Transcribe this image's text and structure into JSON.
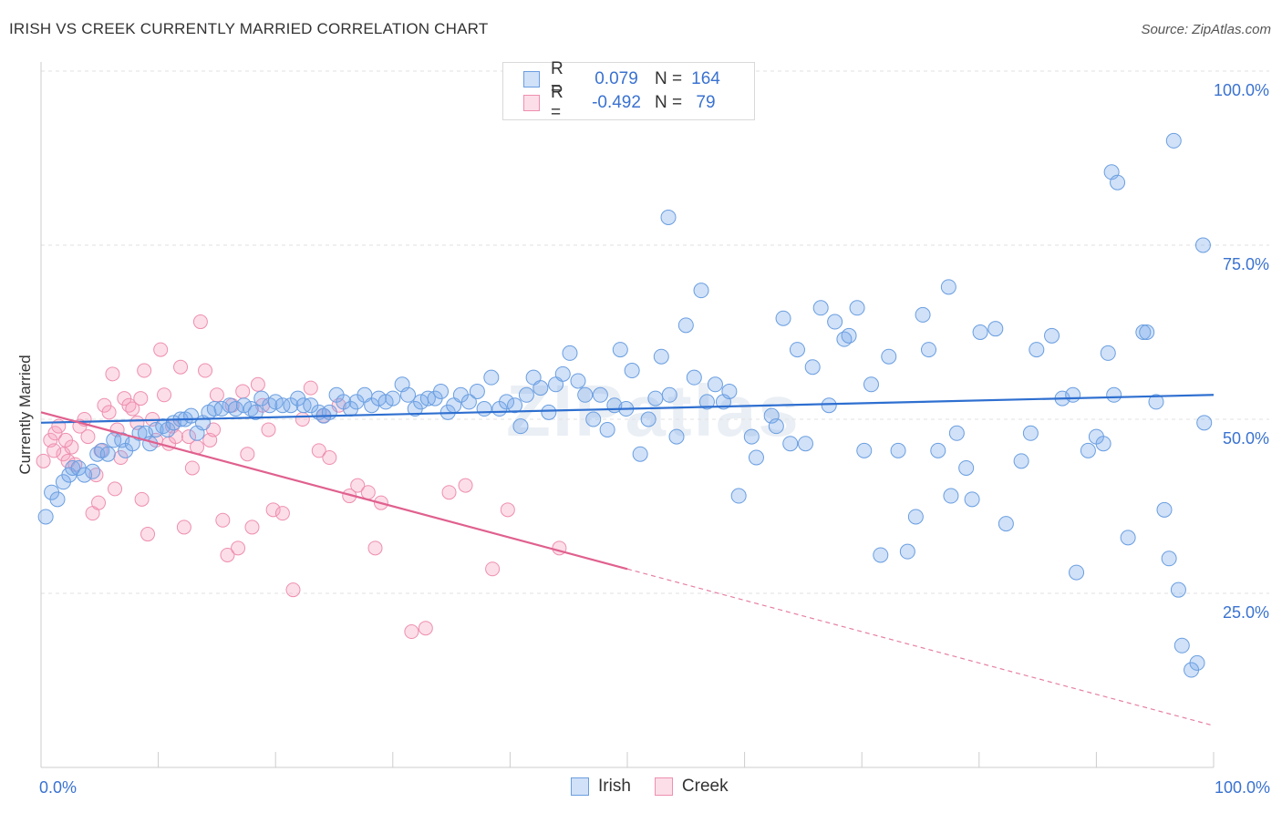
{
  "header": {
    "title": "IRISH VS CREEK CURRENTLY MARRIED CORRELATION CHART",
    "source": "Source: ZipAtlas.com"
  },
  "watermark": "ZIPatlas",
  "legend": {
    "rows": [
      {
        "r_label": "R =",
        "r_value": "0.079",
        "n_label": "N =",
        "n_value": "164"
      },
      {
        "r_label": "R =",
        "r_value": "-0.492",
        "n_label": "N =",
        "n_value": "79"
      }
    ]
  },
  "colors": {
    "irish_fill": "rgba(120,170,235,0.35)",
    "irish_stroke": "#6a9ee0",
    "irish_line": "#2e6fd0",
    "creek_fill": "rgba(245,160,190,0.35)",
    "creek_stroke": "#ee8fb0",
    "creek_line": "#e0608e",
    "tick_label": "#3a72d0",
    "grid": "#e2e2e2"
  },
  "chart_data": {
    "type": "scatter",
    "title": "IRISH VS CREEK CURRENTLY MARRIED CORRELATION CHART",
    "xlabel": "",
    "ylabel": "Currently Married",
    "xlim": [
      0,
      100
    ],
    "ylim": [
      0,
      100
    ],
    "x_tick_labels": [
      "0.0%",
      "100.0%"
    ],
    "y_tick_labels": [
      "25.0%",
      "50.0%",
      "75.0%",
      "100.0%"
    ],
    "y_ticks": [
      25,
      50,
      75,
      100
    ],
    "grid": true,
    "legend_position": "top-center",
    "series": [
      {
        "name": "Irish",
        "r": 0.079,
        "n": 164,
        "trend": {
          "x": [
            0,
            100
          ],
          "y": [
            49.5,
            53.5
          ]
        },
        "points": [
          [
            0.4,
            36
          ],
          [
            0.9,
            39.5
          ],
          [
            1.4,
            38.5
          ],
          [
            1.9,
            41
          ],
          [
            2.4,
            42
          ],
          [
            2.7,
            43
          ],
          [
            3.2,
            43
          ],
          [
            3.7,
            42
          ],
          [
            4.4,
            42.5
          ],
          [
            4.8,
            45
          ],
          [
            5.2,
            45.5
          ],
          [
            5.7,
            45
          ],
          [
            6.2,
            47
          ],
          [
            6.9,
            47
          ],
          [
            7.2,
            45.5
          ],
          [
            7.8,
            46.5
          ],
          [
            8.4,
            48
          ],
          [
            8.9,
            48
          ],
          [
            9.3,
            46.5
          ],
          [
            9.8,
            48.5
          ],
          [
            10.4,
            49
          ],
          [
            10.8,
            48.5
          ],
          [
            11.3,
            49.5
          ],
          [
            11.9,
            50
          ],
          [
            12.3,
            50
          ],
          [
            12.8,
            50.5
          ],
          [
            13.3,
            48
          ],
          [
            13.8,
            49.5
          ],
          [
            14.3,
            51
          ],
          [
            14.8,
            51.5
          ],
          [
            15.4,
            51.5
          ],
          [
            16.1,
            52
          ],
          [
            16.6,
            51.5
          ],
          [
            17.3,
            52
          ],
          [
            17.9,
            51.5
          ],
          [
            18.3,
            51
          ],
          [
            18.8,
            53
          ],
          [
            19.5,
            52
          ],
          [
            20,
            52.5
          ],
          [
            20.6,
            52
          ],
          [
            21.3,
            52
          ],
          [
            21.9,
            53
          ],
          [
            22.4,
            52
          ],
          [
            23,
            52
          ],
          [
            23.7,
            51
          ],
          [
            24.1,
            50.5
          ],
          [
            24.6,
            51
          ],
          [
            25.2,
            53.5
          ],
          [
            25.8,
            52.5
          ],
          [
            26.4,
            51.5
          ],
          [
            26.9,
            52.5
          ],
          [
            27.6,
            53.5
          ],
          [
            28.2,
            52
          ],
          [
            28.8,
            53
          ],
          [
            29.4,
            52.5
          ],
          [
            30,
            53
          ],
          [
            30.8,
            55
          ],
          [
            31.3,
            53.5
          ],
          [
            31.9,
            51.5
          ],
          [
            32.4,
            52.5
          ],
          [
            33,
            53
          ],
          [
            33.6,
            53
          ],
          [
            34.1,
            54
          ],
          [
            34.7,
            51
          ],
          [
            35.2,
            52
          ],
          [
            35.8,
            53.5
          ],
          [
            36.5,
            52.5
          ],
          [
            37.2,
            54
          ],
          [
            37.8,
            51.5
          ],
          [
            38.4,
            56
          ],
          [
            39.1,
            51.5
          ],
          [
            39.7,
            52.5
          ],
          [
            40.4,
            52
          ],
          [
            40.9,
            49
          ],
          [
            41.4,
            53.5
          ],
          [
            42,
            56
          ],
          [
            42.6,
            54.5
          ],
          [
            43.3,
            51
          ],
          [
            43.9,
            55
          ],
          [
            44.5,
            56.5
          ],
          [
            45.1,
            59.5
          ],
          [
            45.8,
            55.5
          ],
          [
            46.4,
            53.5
          ],
          [
            47.1,
            50
          ],
          [
            47.7,
            53.5
          ],
          [
            48.3,
            48.5
          ],
          [
            48.9,
            52
          ],
          [
            49.4,
            60
          ],
          [
            49.9,
            51.5
          ],
          [
            50.4,
            57
          ],
          [
            51.1,
            45
          ],
          [
            51.8,
            50
          ],
          [
            52.4,
            53
          ],
          [
            52.9,
            59
          ],
          [
            53.6,
            53.5
          ],
          [
            54.2,
            47.5
          ],
          [
            55,
            63.5
          ],
          [
            55.7,
            56
          ],
          [
            56.3,
            68.5
          ],
          [
            56.8,
            52.5
          ],
          [
            57.5,
            55
          ],
          [
            58.2,
            52.5
          ],
          [
            58.7,
            54
          ],
          [
            59.5,
            39
          ],
          [
            60.6,
            47.5
          ],
          [
            61,
            44.5
          ],
          [
            62.3,
            50.5
          ],
          [
            62.7,
            49
          ],
          [
            63.3,
            64.5
          ],
          [
            63.9,
            46.5
          ],
          [
            64.5,
            60
          ],
          [
            65.2,
            46.5
          ],
          [
            65.8,
            57.5
          ],
          [
            66.5,
            66
          ],
          [
            67.2,
            52
          ],
          [
            67.7,
            64
          ],
          [
            68.5,
            61.5
          ],
          [
            68.9,
            62
          ],
          [
            69.6,
            66
          ],
          [
            70.2,
            45.5
          ],
          [
            70.8,
            55
          ],
          [
            71.6,
            30.5
          ],
          [
            72.3,
            59
          ],
          [
            73.1,
            45.5
          ],
          [
            73.9,
            31
          ],
          [
            74.6,
            36
          ],
          [
            75.2,
            65
          ],
          [
            75.7,
            60
          ],
          [
            76.5,
            45.5
          ],
          [
            77.4,
            69
          ],
          [
            77.6,
            39
          ],
          [
            78.1,
            48
          ],
          [
            78.9,
            43
          ],
          [
            79.4,
            38.5
          ],
          [
            80.1,
            62.5
          ],
          [
            81.4,
            63
          ],
          [
            82.3,
            35
          ],
          [
            83.6,
            44
          ],
          [
            84.4,
            48
          ],
          [
            84.9,
            60
          ],
          [
            86.2,
            62
          ],
          [
            87.1,
            53
          ],
          [
            88,
            53.5
          ],
          [
            88.3,
            28
          ],
          [
            89.3,
            45.5
          ],
          [
            90,
            47.5
          ],
          [
            90.6,
            46.5
          ],
          [
            91,
            59.5
          ],
          [
            91.3,
            85.5
          ],
          [
            91.8,
            84
          ],
          [
            91.5,
            53.5
          ],
          [
            92.7,
            33
          ],
          [
            94,
            62.5
          ],
          [
            94.3,
            62.5
          ],
          [
            95.1,
            52.5
          ],
          [
            95.8,
            37
          ],
          [
            96.2,
            30
          ],
          [
            96.6,
            90
          ],
          [
            97,
            25.5
          ],
          [
            97.3,
            17.5
          ],
          [
            98.1,
            14
          ],
          [
            98.6,
            15
          ],
          [
            99.1,
            75
          ],
          [
            99.2,
            49.5
          ],
          [
            53.5,
            79
          ]
        ]
      },
      {
        "name": "Creek",
        "r": -0.492,
        "n": 79,
        "trend": {
          "x": [
            0,
            50
          ],
          "y": [
            51,
            28.5
          ]
        },
        "trend_dashed": {
          "x": [
            50,
            100
          ],
          "y": [
            28.5,
            6
          ]
        },
        "points": [
          [
            0.2,
            44
          ],
          [
            0.8,
            47
          ],
          [
            1.2,
            48
          ],
          [
            1.5,
            49
          ],
          [
            1.9,
            45
          ],
          [
            2.3,
            44
          ],
          [
            2.6,
            46
          ],
          [
            2.9,
            43.5
          ],
          [
            3.3,
            49
          ],
          [
            3.7,
            50
          ],
          [
            4,
            47.5
          ],
          [
            4.4,
            36.5
          ],
          [
            4.7,
            42
          ],
          [
            5.1,
            45.5
          ],
          [
            5.4,
            52
          ],
          [
            5.8,
            51
          ],
          [
            6.1,
            56.5
          ],
          [
            6.5,
            48.5
          ],
          [
            6.8,
            44.5
          ],
          [
            7.1,
            53
          ],
          [
            7.5,
            52
          ],
          [
            7.8,
            51.5
          ],
          [
            8.2,
            49.5
          ],
          [
            8.5,
            53
          ],
          [
            8.8,
            57
          ],
          [
            9.1,
            33.5
          ],
          [
            9.5,
            50
          ],
          [
            9.8,
            47
          ],
          [
            10.2,
            60
          ],
          [
            10.5,
            53.5
          ],
          [
            10.9,
            46.5
          ],
          [
            11.2,
            49
          ],
          [
            11.5,
            47.5
          ],
          [
            11.9,
            57.5
          ],
          [
            12.2,
            34.5
          ],
          [
            12.6,
            47.5
          ],
          [
            12.9,
            43
          ],
          [
            13.3,
            46
          ],
          [
            13.6,
            64
          ],
          [
            14,
            57
          ],
          [
            14.4,
            47
          ],
          [
            14.7,
            48.5
          ],
          [
            15,
            53.5
          ],
          [
            15.5,
            35.5
          ],
          [
            15.9,
            30.5
          ],
          [
            16.3,
            52
          ],
          [
            16.8,
            31.5
          ],
          [
            17.2,
            54
          ],
          [
            17.6,
            45
          ],
          [
            18,
            34.5
          ],
          [
            18.5,
            55
          ],
          [
            18.9,
            52
          ],
          [
            19.4,
            48.5
          ],
          [
            19.8,
            37
          ],
          [
            20.6,
            36.5
          ],
          [
            21.5,
            25.5
          ],
          [
            22.3,
            50
          ],
          [
            23,
            54.5
          ],
          [
            23.7,
            45.5
          ],
          [
            24.1,
            50.5
          ],
          [
            24.6,
            44.5
          ],
          [
            25.4,
            52
          ],
          [
            26.3,
            39
          ],
          [
            27,
            40.5
          ],
          [
            27.9,
            39.5
          ],
          [
            28.5,
            31.5
          ],
          [
            29,
            38
          ],
          [
            31.6,
            19.5
          ],
          [
            32.8,
            20
          ],
          [
            34.8,
            39.5
          ],
          [
            36.2,
            40.5
          ],
          [
            38.5,
            28.5
          ],
          [
            39.8,
            37
          ],
          [
            44.2,
            31.5
          ],
          [
            4.9,
            38
          ],
          [
            6.3,
            40
          ],
          [
            8.6,
            38.5
          ],
          [
            2.1,
            47
          ],
          [
            1.1,
            45.5
          ]
        ]
      }
    ]
  },
  "bottom_legend": [
    "Irish",
    "Creek"
  ]
}
